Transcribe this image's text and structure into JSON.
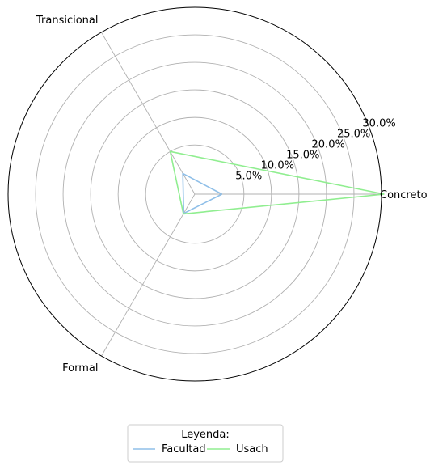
{
  "chart_data": {
    "type": "radar",
    "title": "",
    "categories": [
      "Concreto",
      "Transicional",
      "Formal"
    ],
    "rlim": [
      0,
      30
    ],
    "r_ticks": [
      5,
      10,
      15,
      20,
      25,
      30
    ],
    "r_tick_labels": [
      "5.0%",
      "10.0%",
      "15.0%",
      "20.0%",
      "25.0%",
      "30.0%"
    ],
    "grid": true,
    "series": [
      {
        "name": "Facultad",
        "color": "#8fbfe8",
        "values": [
          1.0,
          0.4,
          0.1
        ]
      },
      {
        "name": "Usach",
        "color": "#90ee90",
        "values": [
          30.5,
          5.0,
          0.2
        ]
      }
    ],
    "legend": {
      "title": "Leyenda:",
      "placement": "bottom-center",
      "columns": 2
    }
  }
}
